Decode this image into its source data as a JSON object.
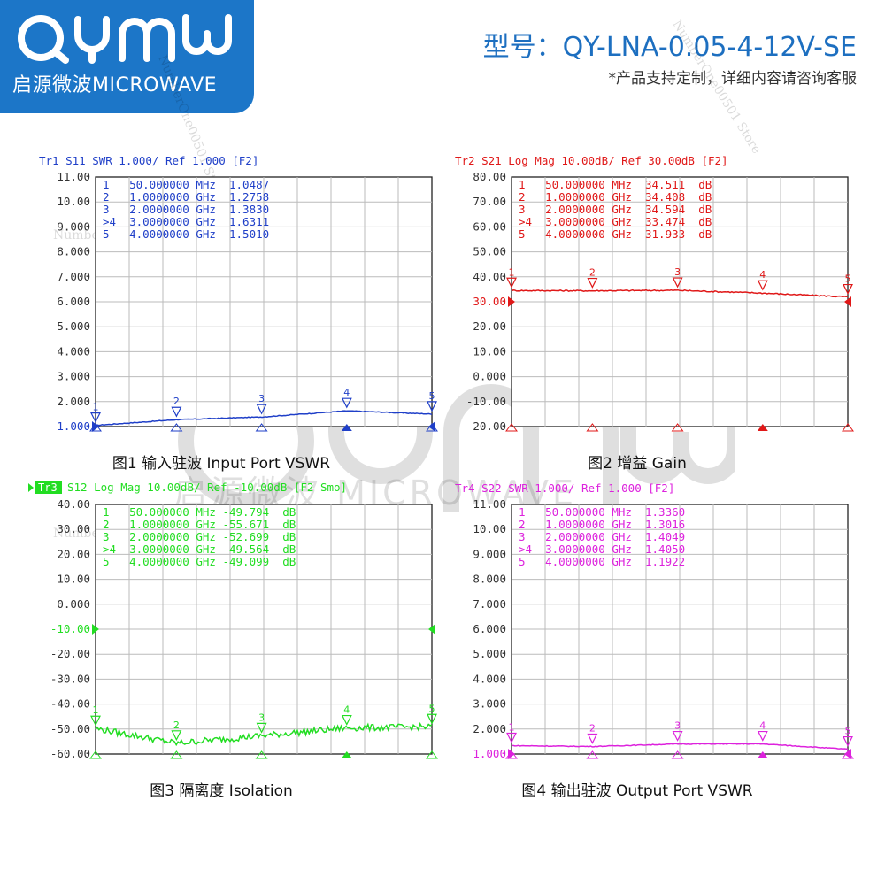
{
  "brand": {
    "logo_text": "QYMW",
    "subtitle": "启源微波MICROWAVE",
    "color": "#1c76c8"
  },
  "header": {
    "model": "型号：QY-LNA-0.05-4-12V-SE",
    "note": "*产品支持定制，详细内容请咨询客服"
  },
  "watermarks": {
    "store": "NumberOne00501 Store",
    "logo": "QYMW",
    "logo_sub": "启源微波 MICROWAVE"
  },
  "chart_data": [
    {
      "type": "line",
      "trace_label": "Tr1",
      "header": "Tr1 S11 SWR 1.000/ Ref 1.000 [F2]",
      "color": "#1f3fc8",
      "caption": "图1  输入驻波 Input Port VSWR",
      "y_ticks": [
        "11.00",
        "10.00",
        "9.000",
        "8.000",
        "7.000",
        "6.000",
        "5.000",
        "4.000",
        "3.000",
        "2.000",
        "1.000"
      ],
      "ylim": [
        1,
        11
      ],
      "xlim": [
        0.05,
        4
      ],
      "ref_value": 1.0,
      "markers": [
        {
          "id": "1",
          "x": 0.05,
          "y": 1.0487,
          "line": "1   50.000000 MHz  1.0487"
        },
        {
          "id": "2",
          "x": 1.0,
          "y": 1.2758,
          "line": "2   1.0000000 GHz  1.2758"
        },
        {
          "id": "3",
          "x": 2.0,
          "y": 1.383,
          "line": "3   2.0000000 GHz  1.3830"
        },
        {
          "id": "4",
          "x": 3.0,
          "y": 1.6311,
          "line": ">4  3.0000000 GHz  1.6311",
          "active": true
        },
        {
          "id": "5",
          "x": 4.0,
          "y": 1.501,
          "line": "5   4.0000000 GHz  1.5010"
        }
      ]
    },
    {
      "type": "line",
      "trace_label": "Tr2",
      "header": "Tr2 S21 Log Mag 10.00dB/ Ref 30.00dB [F2]",
      "color": "#e01818",
      "caption": "图2  增益 Gain",
      "y_ticks": [
        "80.00",
        "70.00",
        "60.00",
        "50.00",
        "40.00",
        "30.00",
        "20.00",
        "10.00",
        "0.000",
        "-10.00",
        "-20.00"
      ],
      "ylim": [
        -20,
        80
      ],
      "xlim": [
        0.05,
        4
      ],
      "ref_value": 30.0,
      "markers": [
        {
          "id": "1",
          "x": 0.05,
          "y": 34.511,
          "line": "1   50.000000 MHz  34.511  dB"
        },
        {
          "id": "2",
          "x": 1.0,
          "y": 34.408,
          "line": "2   1.0000000 GHz  34.408  dB"
        },
        {
          "id": "3",
          "x": 2.0,
          "y": 34.594,
          "line": "3   2.0000000 GHz  34.594  dB"
        },
        {
          "id": "4",
          "x": 3.0,
          "y": 33.474,
          "line": ">4  3.0000000 GHz  33.474  dB",
          "active": true
        },
        {
          "id": "5",
          "x": 4.0,
          "y": 31.933,
          "line": "5   4.0000000 GHz  31.933  dB"
        }
      ]
    },
    {
      "type": "line",
      "trace_label": "Tr3",
      "header": "S12 Log Mag 10.00dB/ Ref -10.00dB [F2 Smo]",
      "color": "#22dd22",
      "caption": "图3 隔离度 Isolation",
      "y_ticks": [
        "40.00",
        "30.00",
        "20.00",
        "10.00",
        "0.000",
        "-10.00",
        "-20.00",
        "-30.00",
        "-40.00",
        "-50.00",
        "-60.00"
      ],
      "ylim": [
        -60,
        40
      ],
      "xlim": [
        0.05,
        4
      ],
      "ref_value": -10.0,
      "markers": [
        {
          "id": "1",
          "x": 0.05,
          "y": -49.794,
          "line": "1   50.000000 MHz -49.794  dB"
        },
        {
          "id": "2",
          "x": 1.0,
          "y": -55.671,
          "line": "2   1.0000000 GHz -55.671  dB"
        },
        {
          "id": "3",
          "x": 2.0,
          "y": -52.699,
          "line": "3   2.0000000 GHz -52.699  dB"
        },
        {
          "id": "4",
          "x": 3.0,
          "y": -49.564,
          "line": ">4  3.0000000 GHz -49.564  dB",
          "active": true
        },
        {
          "id": "5",
          "x": 4.0,
          "y": -49.099,
          "line": "5   4.0000000 GHz -49.099  dB"
        }
      ]
    },
    {
      "type": "line",
      "trace_label": "Tr4",
      "header": "Tr4 S22 SWR 1.000/ Ref 1.000 [F2]",
      "color": "#dd22dd",
      "caption": "图4  输出驻波 Output Port VSWR",
      "y_ticks": [
        "11.00",
        "10.00",
        "9.000",
        "8.000",
        "7.000",
        "6.000",
        "5.000",
        "4.000",
        "3.000",
        "2.000",
        "1.000"
      ],
      "ylim": [
        1,
        11
      ],
      "xlim": [
        0.05,
        4
      ],
      "ref_value": 1.0,
      "markers": [
        {
          "id": "1",
          "x": 0.05,
          "y": 1.336,
          "line": "1   50.000000 MHz  1.3360"
        },
        {
          "id": "2",
          "x": 1.0,
          "y": 1.3016,
          "line": "2   1.0000000 GHz  1.3016"
        },
        {
          "id": "3",
          "x": 2.0,
          "y": 1.4049,
          "line": "3   2.0000000 GHz  1.4049"
        },
        {
          "id": "4",
          "x": 3.0,
          "y": 1.405,
          "line": ">4  3.0000000 GHz  1.4050",
          "active": true
        },
        {
          "id": "5",
          "x": 4.0,
          "y": 1.1922,
          "line": "5   4.0000000 GHz  1.1922"
        }
      ]
    }
  ]
}
